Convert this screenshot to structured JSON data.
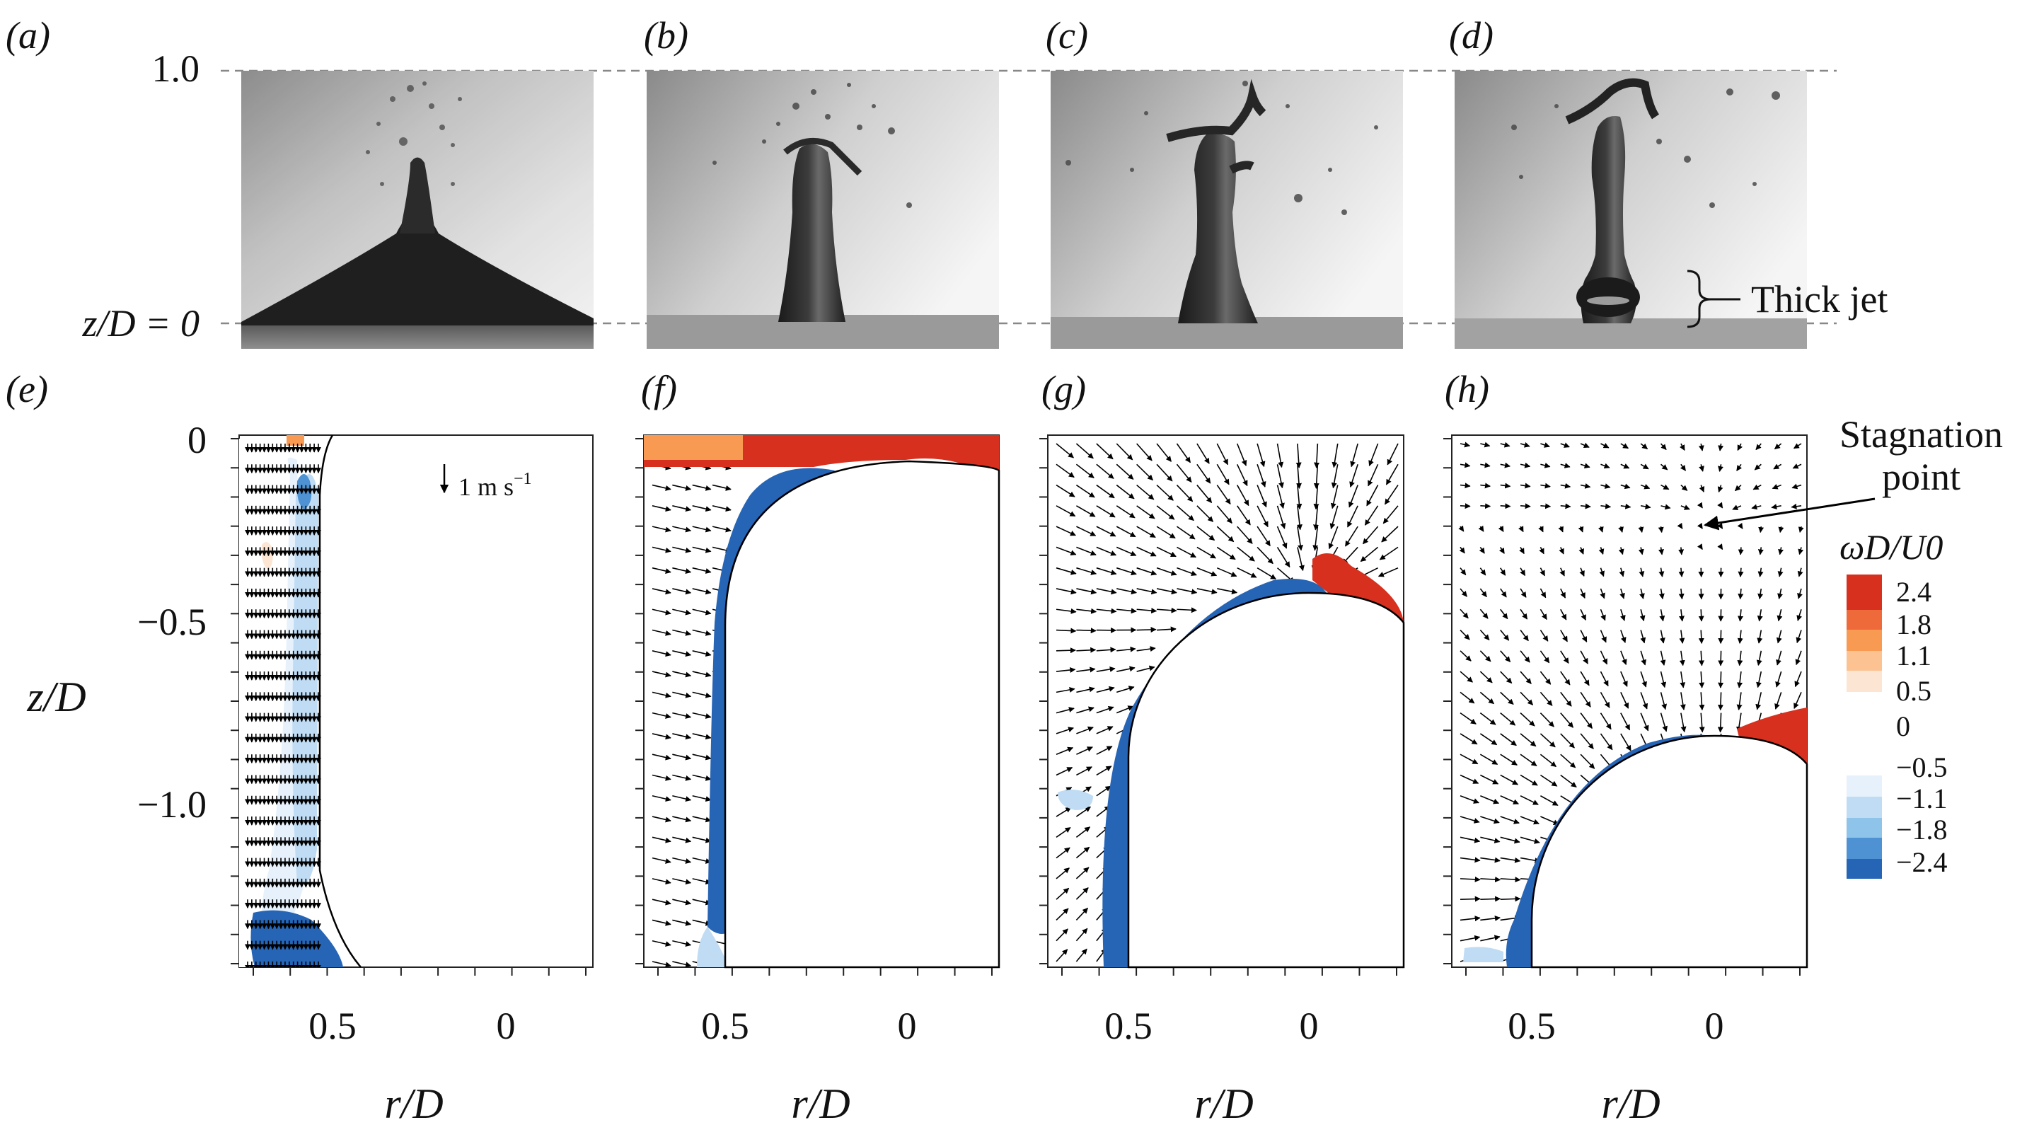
{
  "panel_labels": {
    "a": "(a)",
    "b": "(b)",
    "c": "(c)",
    "d": "(d)",
    "e": "(e)",
    "f": "(f)",
    "g": "(g)",
    "h": "(h)"
  },
  "photo_row": {
    "top_level_label": "1.0",
    "zero_level_label": "z/D = 0",
    "annotation": "Thick jet"
  },
  "scale_arrow_label": "1 m s",
  "scale_arrow_exponent": "−1",
  "stagnation_label_line1": "Stagnation",
  "stagnation_label_line2": "point",
  "y_axis_label": "z/D",
  "x_axis_label": "r/D",
  "chart_data": [
    {
      "type": "heatmap",
      "panel": "(e)",
      "xlabel": "r/D",
      "ylabel": "z/D",
      "x_ticks": [
        "0.5",
        "0"
      ],
      "y_ticks": [
        "0",
        "−0.5",
        "−1.0"
      ],
      "ylim": [
        -1.45,
        0
      ],
      "colorbar_title": "ωD/U0",
      "colorbar_ticks": [
        "2.4",
        "1.8",
        "1.1",
        "0.5",
        "0",
        "−0.5",
        "−1.1",
        "−1.8",
        "−2.4"
      ],
      "colormap": [
        "#d7301f",
        "#ee6a3a",
        "#f89a52",
        "#fcc292",
        "#fde5d3",
        "#ffffff",
        "#e6f1fb",
        "#bfdcf4",
        "#8ec3ea",
        "#4f92d3",
        "#2664b5"
      ]
    },
    {
      "type": "heatmap",
      "panel": "(f)",
      "xlabel": "r/D",
      "x_ticks": [
        "0.5",
        "0"
      ]
    },
    {
      "type": "heatmap",
      "panel": "(g)",
      "xlabel": "r/D",
      "x_ticks": [
        "0.5",
        "0"
      ]
    },
    {
      "type": "heatmap",
      "panel": "(h)",
      "xlabel": "r/D",
      "x_ticks": [
        "0.5",
        "0"
      ]
    }
  ]
}
